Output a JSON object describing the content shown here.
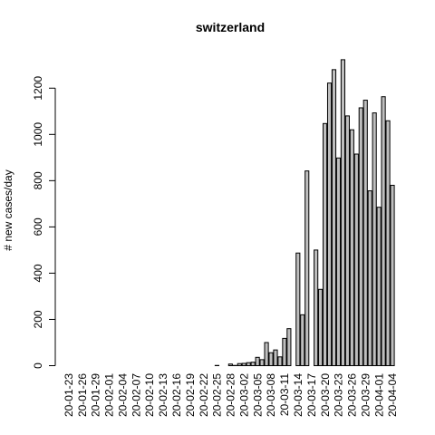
{
  "chart_data": {
    "type": "bar",
    "title": "switzerland",
    "xlabel": "",
    "ylabel": "# new cases/day",
    "ylim": [
      0,
      1350
    ],
    "yticks": [
      0,
      200,
      400,
      600,
      800,
      1000,
      1200
    ],
    "grid": false,
    "categories": [
      "20-01-23",
      "20-01-24",
      "20-01-25",
      "20-01-26",
      "20-01-27",
      "20-01-28",
      "20-01-29",
      "20-01-30",
      "20-01-31",
      "20-02-01",
      "20-02-02",
      "20-02-03",
      "20-02-04",
      "20-02-05",
      "20-02-06",
      "20-02-07",
      "20-02-08",
      "20-02-09",
      "20-02-10",
      "20-02-11",
      "20-02-12",
      "20-02-13",
      "20-02-14",
      "20-02-15",
      "20-02-16",
      "20-02-17",
      "20-02-18",
      "20-02-19",
      "20-02-20",
      "20-02-21",
      "20-02-22",
      "20-02-23",
      "20-02-24",
      "20-02-25",
      "20-02-26",
      "20-02-27",
      "20-02-28",
      "20-02-29",
      "20-03-01",
      "20-03-02",
      "20-03-03",
      "20-03-04",
      "20-03-05",
      "20-03-06",
      "20-03-07",
      "20-03-08",
      "20-03-09",
      "20-03-10",
      "20-03-11",
      "20-03-12",
      "20-03-13",
      "20-03-14",
      "20-03-15",
      "20-03-16",
      "20-03-17",
      "20-03-18",
      "20-03-19",
      "20-03-20",
      "20-03-21",
      "20-03-22",
      "20-03-23",
      "20-03-24",
      "20-03-25",
      "20-03-26",
      "20-03-27",
      "20-03-28",
      "20-03-29",
      "20-03-30",
      "20-03-31",
      "20-04-01",
      "20-04-02",
      "20-04-03",
      "20-04-04"
    ],
    "tick_labels": [
      "20-01-23",
      "20-01-26",
      "20-01-29",
      "20-02-01",
      "20-02-04",
      "20-02-07",
      "20-02-10",
      "20-02-13",
      "20-02-16",
      "20-02-19",
      "20-02-22",
      "20-02-25",
      "20-02-28",
      "20-03-02",
      "20-03-05",
      "20-03-08",
      "20-03-11",
      "20-03-14",
      "20-03-17",
      "20-03-20",
      "20-03-23",
      "20-03-26",
      "20-03-29",
      "20-04-01",
      "20-04-04"
    ],
    "values": [
      0,
      0,
      0,
      0,
      0,
      0,
      0,
      0,
      0,
      0,
      0,
      0,
      0,
      0,
      0,
      0,
      0,
      0,
      0,
      0,
      0,
      0,
      0,
      0,
      0,
      0,
      0,
      0,
      0,
      0,
      0,
      0,
      0,
      1,
      0,
      0,
      7,
      1,
      9,
      10,
      13,
      15,
      36,
      26,
      100,
      56,
      68,
      38,
      118,
      160,
      0,
      487,
      220,
      842,
      0,
      500,
      330,
      1047,
      1222,
      1280,
      898,
      1323,
      1080,
      1020,
      915,
      1115,
      1148,
      756,
      1093,
      685,
      1163,
      1059,
      780
    ]
  }
}
